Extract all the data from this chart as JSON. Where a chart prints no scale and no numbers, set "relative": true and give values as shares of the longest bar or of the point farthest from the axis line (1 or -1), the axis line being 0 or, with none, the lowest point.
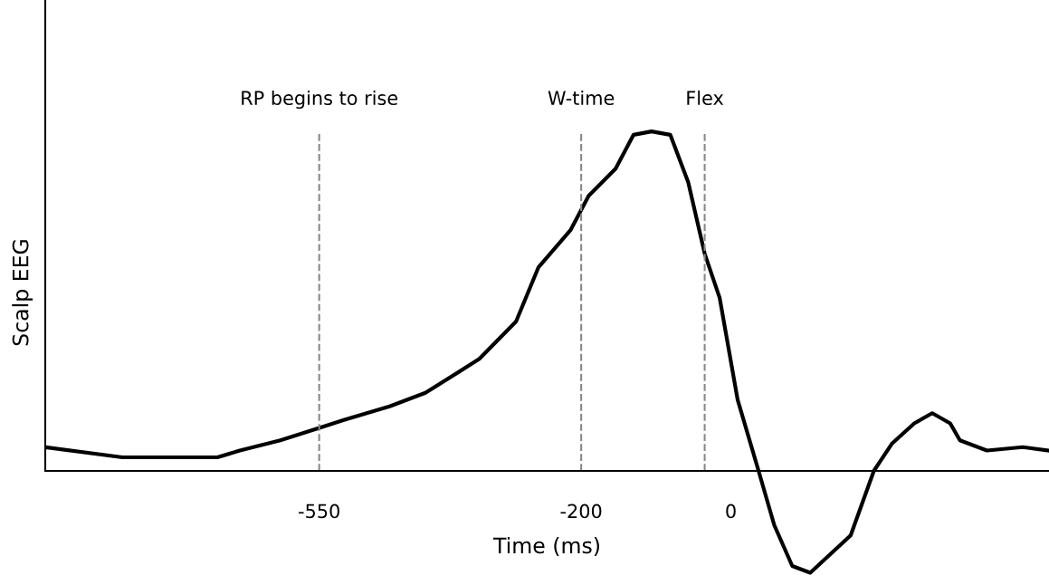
{
  "chart_data": {
    "type": "line",
    "relative": true,
    "xlabel": "Time (ms)",
    "ylabel": "Scalp EEG",
    "xlim": [
      -916,
      425
    ],
    "xticks": [
      -550,
      -200,
      0
    ],
    "grid": false,
    "marker": "none",
    "line_style": "solid",
    "tick_labels": "x",
    "x": [
      -916,
      -813,
      -686,
      -656,
      -602,
      -545,
      -517,
      -456,
      -408,
      -336,
      -287,
      -257,
      -214,
      -190,
      -154,
      -130,
      -106,
      -81,
      -57,
      -35,
      -15,
      9,
      37,
      58,
      82,
      106,
      160,
      191,
      215,
      245,
      269,
      293,
      306,
      342,
      390,
      425
    ],
    "series": [
      {
        "color": "#000000",
        "values": [
          0.07,
          0.04,
          0.04,
          0.06,
          0.09,
          0.13,
          0.15,
          0.19,
          0.23,
          0.33,
          0.44,
          0.6,
          0.71,
          0.81,
          0.89,
          0.99,
          1.0,
          0.99,
          0.85,
          0.64,
          0.51,
          0.21,
          0.0,
          -0.16,
          -0.28,
          -0.3,
          -0.19,
          0.0,
          0.08,
          0.14,
          0.17,
          0.14,
          0.09,
          0.06,
          0.07,
          0.06
        ]
      }
    ],
    "ref_lines": [
      {
        "axis": "x",
        "value": -550,
        "label": "RP begins to rise",
        "color": "#888888",
        "line_style": "dashed"
      },
      {
        "axis": "x",
        "value": -200,
        "label": "W-time",
        "color": "#888888",
        "line_style": "dashed"
      },
      {
        "axis": "x",
        "value": -35,
        "label": "Flex",
        "color": "#888888",
        "line_style": "dashed"
      }
    ]
  }
}
